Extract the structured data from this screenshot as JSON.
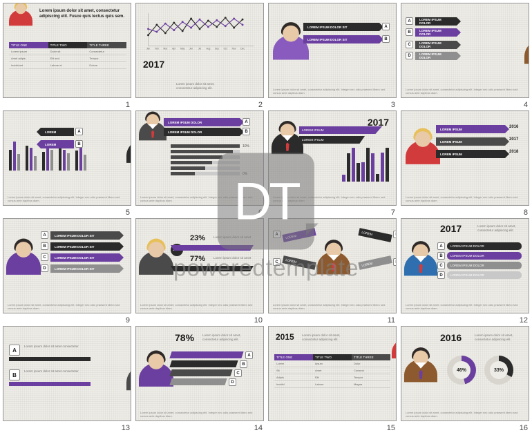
{
  "watermark": {
    "initials": "DT",
    "text": "poweredtemplate"
  },
  "colors": {
    "purple": "#6b3fa0",
    "purple2": "#8a5bbf",
    "black": "#2b2b2b",
    "darkgray": "#4a4a4a",
    "midgray": "#8f8f8f",
    "lightgray": "#c8c8c8",
    "red": "#d23b3c",
    "brown": "#8c5a2e",
    "blue": "#2f6fb0",
    "white": "#ffffff",
    "skin": "#e8c9a8",
    "blonde": "#e8c05a",
    "darkhair": "#2f2a28"
  },
  "lorem_short": "Lorem ipsum dolor sit amet, consectetur adipiscing elit.",
  "lorem_long": "Lorem ipsum dolor sit amet, consectetur adipiscing elit. Integer nec odio praesent libero sed cursus ante dapibus diam.",
  "slides": [
    {
      "n": 1,
      "avatar": {
        "body": "#d23b3c",
        "hair": "#e8c05a",
        "tie": null,
        "pos": "top-left"
      },
      "headline": "Lorem ipsum dolor sit amet, consectetur adipiscing elit. Fusce quis lectus quis sem.",
      "table": {
        "hdr_colors": [
          "#6b3fa0",
          "#2b2b2b",
          "#4a4a4a"
        ],
        "headers": [
          "TITLE ONE",
          "TITLE TWO",
          "TITLE THREE"
        ],
        "rows": [
          [
            "Lorem ipsum",
            "Dolor sit",
            "Consectetur"
          ],
          [
            "Amet adipis",
            "Elit sed",
            "Tempor"
          ],
          [
            "Incididunt",
            "Labore et",
            "Dolore"
          ]
        ]
      }
    },
    {
      "n": 2,
      "avatar": {
        "body": "#4a4a4a",
        "hair": "#2f2a28",
        "tie": "#d23b3c",
        "pos": "bottom-right"
      },
      "year": "2017",
      "linechart": {
        "months": [
          "Jan",
          "Feb",
          "Mar",
          "Apr",
          "May",
          "Jun",
          "Jul",
          "Aug",
          "Sep",
          "Oct",
          "Nov",
          "Dec"
        ],
        "series": [
          {
            "color": "#2b2b2b",
            "values": [
              30,
              55,
              35,
              60,
              40,
              70,
              45,
              65,
              50,
              72,
              48,
              68
            ]
          },
          {
            "color": "#6b3fa0",
            "values": [
              45,
              38,
              58,
              42,
              62,
              48,
              68,
              50,
              66,
              52,
              70,
              55
            ]
          }
        ],
        "ylim": [
          0,
          80
        ]
      }
    },
    {
      "n": 3,
      "avatar": {
        "body": "#8a5bbf",
        "hair": "#2f2a28",
        "tie": null,
        "pos": "left"
      },
      "arrows": [
        {
          "bg": "#2b2b2b",
          "label": "A",
          "text": "LOREM IPSUM DOLOR SIT"
        },
        {
          "bg": "#6b3fa0",
          "label": "B",
          "text": "LOREM IPSUM DOLOR SIT"
        }
      ]
    },
    {
      "n": 4,
      "avatar": {
        "body": "#8c5a2e",
        "hair": "#2f2a28",
        "tie": "#6b3fa0",
        "pos": "right"
      },
      "arrows": [
        {
          "bg": "#2b2b2b",
          "label": "A",
          "text": "LOREM IPSUM DOLOR"
        },
        {
          "bg": "#6b3fa0",
          "label": "B",
          "text": "LOREM IPSUM DOLOR"
        },
        {
          "bg": "#4a4a4a",
          "label": "C",
          "text": "LOREM IPSUM DOLOR"
        },
        {
          "bg": "#8f8f8f",
          "label": "D",
          "text": "LOREM IPSUM DOLOR"
        }
      ]
    },
    {
      "n": 5,
      "avatar": {
        "body": "#2b2b2b",
        "hair": "#2f2a28",
        "tie": null,
        "pos": "right"
      },
      "bars_grouped": {
        "sets": 5,
        "colors": [
          "#2b2b2b",
          "#6b3fa0",
          "#8f8f8f"
        ],
        "values": [
          [
            50,
            70,
            40
          ],
          [
            60,
            55,
            35
          ],
          [
            45,
            65,
            50
          ],
          [
            55,
            50,
            42
          ],
          [
            48,
            62,
            38
          ]
        ]
      },
      "labels": [
        "A",
        "B"
      ]
    },
    {
      "n": 6,
      "avatar": {
        "body": "#4a4a4a",
        "hair": "#2f2a28",
        "tie": "#d23b3c",
        "pos": "left"
      },
      "arrows": [
        {
          "bg": "#6b3fa0",
          "label": "A",
          "text": "LOREM IPSUM DOLOR"
        },
        {
          "bg": "#2b2b2b",
          "label": "B",
          "text": "LOREM IPSUM DOLOR"
        }
      ],
      "progress": [
        {
          "pct": 100,
          "color": "#4a4a4a"
        },
        {
          "pct": 90,
          "color": "#4a4a4a"
        },
        {
          "pct": 75,
          "color": "#4a4a4a"
        },
        {
          "pct": 60,
          "color": "#4a4a4a"
        },
        {
          "pct": 50,
          "color": "#4a4a4a"
        },
        {
          "pct": 35,
          "color": "#4a4a4a"
        }
      ],
      "pct_marks": [
        "10%",
        "0%"
      ]
    },
    {
      "n": 7,
      "avatar": {
        "body": "#2b2b2b",
        "hair": "#2f2a28",
        "tie": "#d23b3c",
        "pos": "left"
      },
      "year": "2017",
      "funnels": [
        {
          "bg": "#6b3fa0",
          "text": "LOREM IPSUM"
        },
        {
          "bg": "#2b2b2b",
          "text": "LOREM IPSUM"
        }
      ],
      "bars_small": {
        "count": 10,
        "colors": [
          "#6b3fa0",
          "#2b2b2b"
        ],
        "max": 40
      }
    },
    {
      "n": 8,
      "avatar": {
        "body": "#d23b3c",
        "hair": "#e8c05a",
        "tie": null,
        "pos": "left"
      },
      "year_arrows": [
        {
          "bg": "#6b3fa0",
          "year": "2016",
          "text": "LOREM IPSUM"
        },
        {
          "bg": "#4a4a4a",
          "year": "2017",
          "text": "LOREM IPSUM"
        },
        {
          "bg": "#2b2b2b",
          "year": "2018",
          "text": "LOREM IPSUM"
        }
      ]
    },
    {
      "n": 9,
      "avatar": {
        "body": "#6b3fa0",
        "hair": "#2f2a28",
        "tie": null,
        "pos": "left"
      },
      "list": [
        {
          "bg": "#4a4a4a",
          "label": "A",
          "text": "LOREM IPSUM DOLOR SIT"
        },
        {
          "bg": "#2b2b2b",
          "label": "B",
          "text": "LOREM IPSUM DOLOR SIT"
        },
        {
          "bg": "#6b3fa0",
          "label": "C",
          "text": "LOREM IPSUM DOLOR SIT"
        },
        {
          "bg": "#8f8f8f",
          "label": "D",
          "text": "LOREM IPSUM DOLOR SIT"
        }
      ]
    },
    {
      "n": 10,
      "avatar": {
        "body": "#4a4a4a",
        "hair": "#e8c05a",
        "tie": null,
        "pos": "left"
      },
      "year": "2017",
      "stats": [
        {
          "pct": "23%",
          "text": "Lorem ipsum dolor sit amet"
        },
        {
          "pct": "77%",
          "text": "Lorem ipsum dolor sit amet"
        }
      ],
      "band_colors": [
        "#6b3fa0",
        "#2b2b2b"
      ]
    },
    {
      "n": 11,
      "avatar": {
        "body": "#8c5a2e",
        "hair": "#2f2a28",
        "tie": "#d23b3c",
        "pos": "center"
      },
      "diag_arrows": [
        {
          "bg": "#6b3fa0",
          "label": "A"
        },
        {
          "bg": "#2b2b2b",
          "label": "B"
        },
        {
          "bg": "#4a4a4a",
          "label": "C"
        },
        {
          "bg": "#8f8f8f",
          "label": "D"
        }
      ]
    },
    {
      "n": 12,
      "avatar": {
        "body": "#2f6fb0",
        "hair": "#2f2a28",
        "tie": "#d23b3c",
        "pos": "left"
      },
      "year": "2017",
      "list": [
        {
          "bg": "#2b2b2b",
          "label": "A",
          "text": "LOREM IPSUM DOLOR"
        },
        {
          "bg": "#6b3fa0",
          "label": "B",
          "text": "LOREM IPSUM DOLOR"
        },
        {
          "bg": "#8f8f8f",
          "label": "C",
          "text": "LOREM IPSUM DOLOR"
        },
        {
          "bg": "#c8c8c8",
          "label": "D",
          "text": "LOREM IPSUM DOLOR"
        }
      ]
    },
    {
      "n": 13,
      "avatar": {
        "body": "#4a4a4a",
        "hair": "#2f2a28",
        "tie": "#d23b3c",
        "pos": "right"
      },
      "big_list": [
        {
          "bg": "#2b2b2b",
          "label": "A",
          "text": "Lorem ipsum dolor sit amet consectetur"
        },
        {
          "bg": "#6b3fa0",
          "label": "B",
          "text": "Lorem ipsum dolor sit amet consectetur"
        }
      ]
    },
    {
      "n": 14,
      "avatar": {
        "body": "#6b3fa0",
        "hair": "#2f2a28",
        "tie": null,
        "pos": "left"
      },
      "headline_pct": "78%",
      "diag_list": [
        {
          "bg": "#6b3fa0",
          "label": "A"
        },
        {
          "bg": "#2b2b2b",
          "label": "B"
        },
        {
          "bg": "#4a4a4a",
          "label": "C"
        },
        {
          "bg": "#8f8f8f",
          "label": "D"
        }
      ]
    },
    {
      "n": 15,
      "avatar": {
        "body": "#d23b3c",
        "hair": "#e8c05a",
        "tie": null,
        "pos": "right"
      },
      "year": "2015",
      "table": {
        "hdr_colors": [
          "#6b3fa0",
          "#2b2b2b",
          "#4a4a4a"
        ],
        "headers": [
          "TITLE ONE",
          "TITLE TWO",
          "TITLE THREE"
        ],
        "rows": [
          [
            "Lorem",
            "Ipsum",
            "Dolor"
          ],
          [
            "Sit",
            "Amet",
            "Consect"
          ],
          [
            "Adipis",
            "Elit",
            "Tempor"
          ],
          [
            "Incidid",
            "Labore",
            "Magna"
          ]
        ]
      }
    },
    {
      "n": 16,
      "avatar": {
        "body": "#8c5a2e",
        "hair": "#2f2a28",
        "tie": "#6b3fa0",
        "pos": "left"
      },
      "year": "2016",
      "donuts": [
        {
          "pct": 46,
          "color": "#6b3fa0",
          "label": "46%"
        },
        {
          "pct": 33,
          "color": "#2b2b2b",
          "label": "33%"
        }
      ]
    }
  ]
}
